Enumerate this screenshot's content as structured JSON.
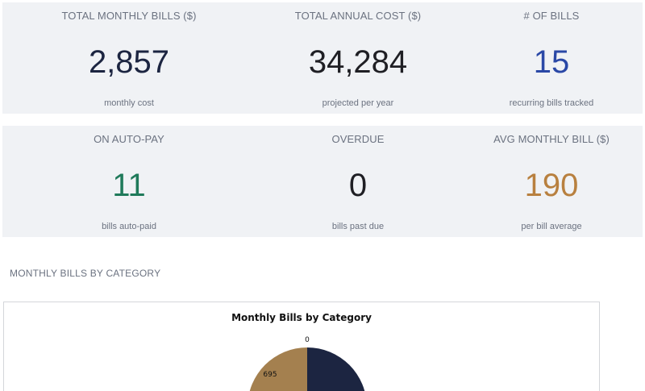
{
  "kpis": [
    {
      "title": "TOTAL MONTHLY BILLS ($)",
      "value": "2,857",
      "sub": "monthly cost",
      "color": "#1c2541"
    },
    {
      "title": "TOTAL ANNUAL COST ($)",
      "value": "34,284",
      "sub": "projected per year",
      "color": "#1f1f24"
    },
    {
      "title": "# OF BILLS",
      "value": "15",
      "sub": "recurring bills tracked",
      "color": "#2a48a6"
    },
    {
      "title": "ON AUTO-PAY",
      "value": "11",
      "sub": "bills auto-paid",
      "color": "#1f7a5a"
    },
    {
      "title": "OVERDUE",
      "value": "0",
      "sub": "bills past due",
      "color": "#1f1f24"
    },
    {
      "title": "AVG MONTHLY BILL ($)",
      "value": "190",
      "sub": "per bill average",
      "color": "#b8803f"
    }
  ],
  "section": {
    "title": "MONTHLY BILLS BY CATEGORY"
  },
  "chart_data": {
    "type": "pie",
    "title": "Monthly Bills by Category",
    "labels": [
      "0",
      "695"
    ],
    "colors": {
      "navy": "#1c2541",
      "tan": "#a4804f"
    }
  }
}
